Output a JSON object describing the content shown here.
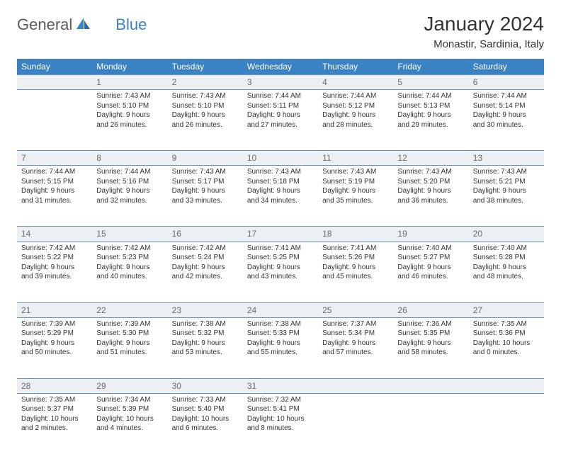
{
  "brand": {
    "part1": "General",
    "part2": "Blue"
  },
  "title": "January 2024",
  "location": "Monastir, Sardinia, Italy",
  "colors": {
    "header_bg": "#3b82c4",
    "header_fg": "#ffffff",
    "daynum_bg": "#edf0f2",
    "rule": "#6a94b8"
  },
  "weekdays": [
    "Sunday",
    "Monday",
    "Tuesday",
    "Wednesday",
    "Thursday",
    "Friday",
    "Saturday"
  ],
  "weeks": [
    [
      null,
      {
        "n": "1",
        "sr": "Sunrise: 7:43 AM",
        "ss": "Sunset: 5:10 PM",
        "d1": "Daylight: 9 hours",
        "d2": "and 26 minutes."
      },
      {
        "n": "2",
        "sr": "Sunrise: 7:43 AM",
        "ss": "Sunset: 5:10 PM",
        "d1": "Daylight: 9 hours",
        "d2": "and 26 minutes."
      },
      {
        "n": "3",
        "sr": "Sunrise: 7:44 AM",
        "ss": "Sunset: 5:11 PM",
        "d1": "Daylight: 9 hours",
        "d2": "and 27 minutes."
      },
      {
        "n": "4",
        "sr": "Sunrise: 7:44 AM",
        "ss": "Sunset: 5:12 PM",
        "d1": "Daylight: 9 hours",
        "d2": "and 28 minutes."
      },
      {
        "n": "5",
        "sr": "Sunrise: 7:44 AM",
        "ss": "Sunset: 5:13 PM",
        "d1": "Daylight: 9 hours",
        "d2": "and 29 minutes."
      },
      {
        "n": "6",
        "sr": "Sunrise: 7:44 AM",
        "ss": "Sunset: 5:14 PM",
        "d1": "Daylight: 9 hours",
        "d2": "and 30 minutes."
      }
    ],
    [
      {
        "n": "7",
        "sr": "Sunrise: 7:44 AM",
        "ss": "Sunset: 5:15 PM",
        "d1": "Daylight: 9 hours",
        "d2": "and 31 minutes."
      },
      {
        "n": "8",
        "sr": "Sunrise: 7:44 AM",
        "ss": "Sunset: 5:16 PM",
        "d1": "Daylight: 9 hours",
        "d2": "and 32 minutes."
      },
      {
        "n": "9",
        "sr": "Sunrise: 7:43 AM",
        "ss": "Sunset: 5:17 PM",
        "d1": "Daylight: 9 hours",
        "d2": "and 33 minutes."
      },
      {
        "n": "10",
        "sr": "Sunrise: 7:43 AM",
        "ss": "Sunset: 5:18 PM",
        "d1": "Daylight: 9 hours",
        "d2": "and 34 minutes."
      },
      {
        "n": "11",
        "sr": "Sunrise: 7:43 AM",
        "ss": "Sunset: 5:19 PM",
        "d1": "Daylight: 9 hours",
        "d2": "and 35 minutes."
      },
      {
        "n": "12",
        "sr": "Sunrise: 7:43 AM",
        "ss": "Sunset: 5:20 PM",
        "d1": "Daylight: 9 hours",
        "d2": "and 36 minutes."
      },
      {
        "n": "13",
        "sr": "Sunrise: 7:43 AM",
        "ss": "Sunset: 5:21 PM",
        "d1": "Daylight: 9 hours",
        "d2": "and 38 minutes."
      }
    ],
    [
      {
        "n": "14",
        "sr": "Sunrise: 7:42 AM",
        "ss": "Sunset: 5:22 PM",
        "d1": "Daylight: 9 hours",
        "d2": "and 39 minutes."
      },
      {
        "n": "15",
        "sr": "Sunrise: 7:42 AM",
        "ss": "Sunset: 5:23 PM",
        "d1": "Daylight: 9 hours",
        "d2": "and 40 minutes."
      },
      {
        "n": "16",
        "sr": "Sunrise: 7:42 AM",
        "ss": "Sunset: 5:24 PM",
        "d1": "Daylight: 9 hours",
        "d2": "and 42 minutes."
      },
      {
        "n": "17",
        "sr": "Sunrise: 7:41 AM",
        "ss": "Sunset: 5:25 PM",
        "d1": "Daylight: 9 hours",
        "d2": "and 43 minutes."
      },
      {
        "n": "18",
        "sr": "Sunrise: 7:41 AM",
        "ss": "Sunset: 5:26 PM",
        "d1": "Daylight: 9 hours",
        "d2": "and 45 minutes."
      },
      {
        "n": "19",
        "sr": "Sunrise: 7:40 AM",
        "ss": "Sunset: 5:27 PM",
        "d1": "Daylight: 9 hours",
        "d2": "and 46 minutes."
      },
      {
        "n": "20",
        "sr": "Sunrise: 7:40 AM",
        "ss": "Sunset: 5:28 PM",
        "d1": "Daylight: 9 hours",
        "d2": "and 48 minutes."
      }
    ],
    [
      {
        "n": "21",
        "sr": "Sunrise: 7:39 AM",
        "ss": "Sunset: 5:29 PM",
        "d1": "Daylight: 9 hours",
        "d2": "and 50 minutes."
      },
      {
        "n": "22",
        "sr": "Sunrise: 7:39 AM",
        "ss": "Sunset: 5:30 PM",
        "d1": "Daylight: 9 hours",
        "d2": "and 51 minutes."
      },
      {
        "n": "23",
        "sr": "Sunrise: 7:38 AM",
        "ss": "Sunset: 5:32 PM",
        "d1": "Daylight: 9 hours",
        "d2": "and 53 minutes."
      },
      {
        "n": "24",
        "sr": "Sunrise: 7:38 AM",
        "ss": "Sunset: 5:33 PM",
        "d1": "Daylight: 9 hours",
        "d2": "and 55 minutes."
      },
      {
        "n": "25",
        "sr": "Sunrise: 7:37 AM",
        "ss": "Sunset: 5:34 PM",
        "d1": "Daylight: 9 hours",
        "d2": "and 57 minutes."
      },
      {
        "n": "26",
        "sr": "Sunrise: 7:36 AM",
        "ss": "Sunset: 5:35 PM",
        "d1": "Daylight: 9 hours",
        "d2": "and 58 minutes."
      },
      {
        "n": "27",
        "sr": "Sunrise: 7:35 AM",
        "ss": "Sunset: 5:36 PM",
        "d1": "Daylight: 10 hours",
        "d2": "and 0 minutes."
      }
    ],
    [
      {
        "n": "28",
        "sr": "Sunrise: 7:35 AM",
        "ss": "Sunset: 5:37 PM",
        "d1": "Daylight: 10 hours",
        "d2": "and 2 minutes."
      },
      {
        "n": "29",
        "sr": "Sunrise: 7:34 AM",
        "ss": "Sunset: 5:39 PM",
        "d1": "Daylight: 10 hours",
        "d2": "and 4 minutes."
      },
      {
        "n": "30",
        "sr": "Sunrise: 7:33 AM",
        "ss": "Sunset: 5:40 PM",
        "d1": "Daylight: 10 hours",
        "d2": "and 6 minutes."
      },
      {
        "n": "31",
        "sr": "Sunrise: 7:32 AM",
        "ss": "Sunset: 5:41 PM",
        "d1": "Daylight: 10 hours",
        "d2": "and 8 minutes."
      },
      null,
      null,
      null
    ]
  ]
}
